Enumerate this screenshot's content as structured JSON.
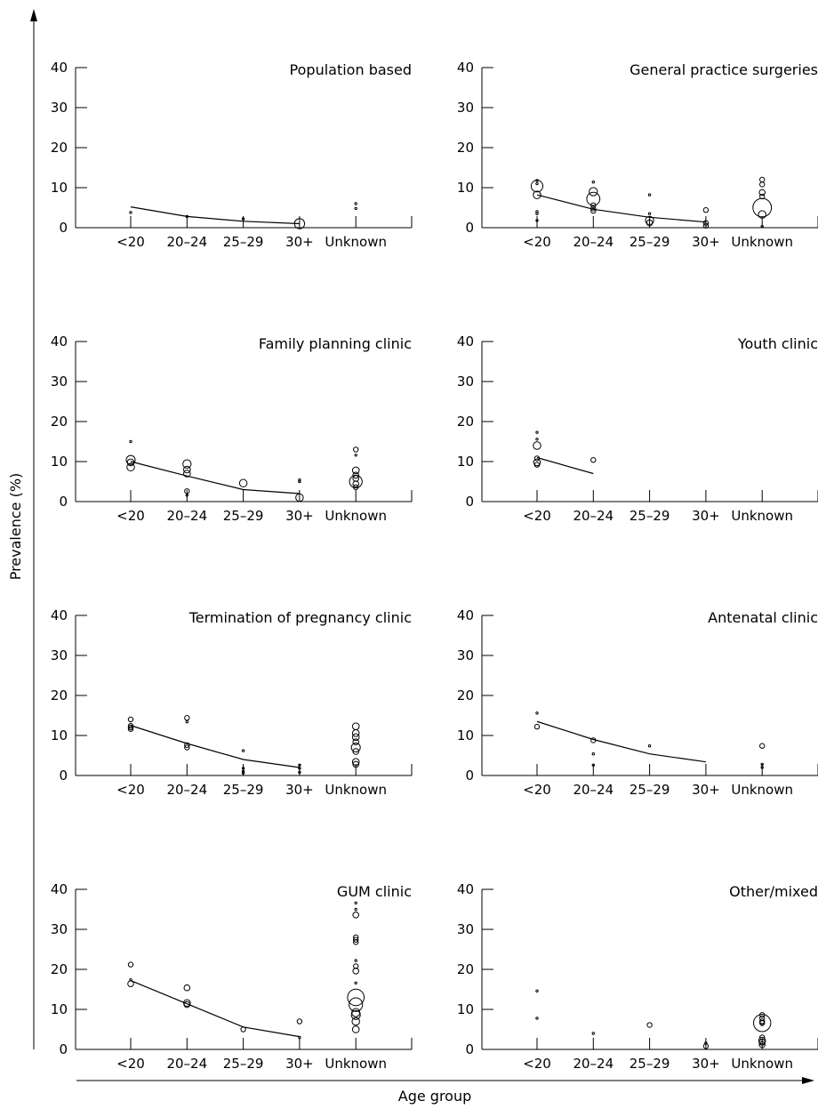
{
  "figure": {
    "ylabel": "Prevalence (%)",
    "xlabel": "Age group"
  },
  "chart_data": [
    {
      "type": "scatter",
      "title": "Population based",
      "categories": [
        "<20",
        "20–24",
        "25–29",
        "30+",
        "Unknown"
      ],
      "ylim": [
        0,
        40
      ],
      "yticks": [
        0,
        10,
        20,
        30,
        40
      ],
      "trend": [
        5.2,
        2.8,
        1.6,
        1.0,
        null
      ],
      "points": [
        {
          "x": "<20",
          "y": 3.8,
          "size": 1
        },
        {
          "x": "20–24",
          "y": 2.8,
          "size": 1
        },
        {
          "x": "25–29",
          "y": 2.2,
          "size": 1
        },
        {
          "x": "30+",
          "y": 1.0,
          "size": 9
        },
        {
          "x": "Unknown",
          "y": 6.0,
          "size": 1
        },
        {
          "x": "Unknown",
          "y": 4.8,
          "size": 1
        }
      ]
    },
    {
      "type": "scatter",
      "title": "General practice surgeries",
      "categories": [
        "<20",
        "20–24",
        "25–29",
        "30+",
        "Unknown"
      ],
      "ylim": [
        0,
        40
      ],
      "yticks": [
        0,
        10,
        20,
        30,
        40
      ],
      "trend": [
        8.2,
        4.6,
        2.6,
        1.4,
        null
      ],
      "points": [
        {
          "x": "<20",
          "y": 10.4,
          "size": 12
        },
        {
          "x": "<20",
          "y": 8.2,
          "size": 5
        },
        {
          "x": "<20",
          "y": 11.8,
          "size": 1
        },
        {
          "x": "<20",
          "y": 11.0,
          "size": 1
        },
        {
          "x": "<20",
          "y": 4.0,
          "size": 1
        },
        {
          "x": "<20",
          "y": 3.5,
          "size": 1
        },
        {
          "x": "<20",
          "y": 1.8,
          "size": 1
        },
        {
          "x": "20–24",
          "y": 7.2,
          "size": 15
        },
        {
          "x": "20–24",
          "y": 9.0,
          "size": 6
        },
        {
          "x": "20–24",
          "y": 11.4,
          "size": 1
        },
        {
          "x": "20–24",
          "y": 5.6,
          "size": 2
        },
        {
          "x": "20–24",
          "y": 4.8,
          "size": 2
        },
        {
          "x": "20–24",
          "y": 4.2,
          "size": 2
        },
        {
          "x": "25–29",
          "y": 1.8,
          "size": 6
        },
        {
          "x": "25–29",
          "y": 1.2,
          "size": 3
        },
        {
          "x": "25–29",
          "y": 8.2,
          "size": 1
        },
        {
          "x": "25–29",
          "y": 3.5,
          "size": 1
        },
        {
          "x": "30+",
          "y": 4.4,
          "size": 2
        },
        {
          "x": "30+",
          "y": 1.2,
          "size": 2
        },
        {
          "x": "30+",
          "y": 0.5,
          "size": 2
        },
        {
          "x": "Unknown",
          "y": 5.0,
          "size": 30
        },
        {
          "x": "Unknown",
          "y": 12.0,
          "size": 2
        },
        {
          "x": "Unknown",
          "y": 10.8,
          "size": 2
        },
        {
          "x": "Unknown",
          "y": 8.8,
          "size": 3
        },
        {
          "x": "Unknown",
          "y": 7.8,
          "size": 2
        },
        {
          "x": "Unknown",
          "y": 3.3,
          "size": 5
        },
        {
          "x": "Unknown",
          "y": 0.3,
          "size": 1
        }
      ]
    },
    {
      "type": "scatter",
      "title": "Family planning clinic",
      "categories": [
        "<20",
        "20–24",
        "25–29",
        "30+",
        "Unknown"
      ],
      "ylim": [
        0,
        40
      ],
      "yticks": [
        0,
        10,
        20,
        30,
        40
      ],
      "trend": [
        10.0,
        6.4,
        3.0,
        2.0,
        null
      ],
      "points": [
        {
          "x": "<20",
          "y": 10.4,
          "size": 7
        },
        {
          "x": "<20",
          "y": 9.8,
          "size": 4
        },
        {
          "x": "<20",
          "y": 8.6,
          "size": 5
        },
        {
          "x": "<20",
          "y": 15.0,
          "size": 1
        },
        {
          "x": "20–24",
          "y": 9.4,
          "size": 6
        },
        {
          "x": "20–24",
          "y": 8.0,
          "size": 4
        },
        {
          "x": "20–24",
          "y": 7.0,
          "size": 4
        },
        {
          "x": "20–24",
          "y": 2.6,
          "size": 2
        },
        {
          "x": "20–24",
          "y": 1.6,
          "size": 1
        },
        {
          "x": "25–29",
          "y": 4.6,
          "size": 5
        },
        {
          "x": "30+",
          "y": 5.4,
          "size": 1
        },
        {
          "x": "30+",
          "y": 5.0,
          "size": 1
        },
        {
          "x": "30+",
          "y": 1.0,
          "size": 5
        },
        {
          "x": "Unknown",
          "y": 13.0,
          "size": 2
        },
        {
          "x": "Unknown",
          "y": 11.6,
          "size": 1
        },
        {
          "x": "Unknown",
          "y": 7.8,
          "size": 4
        },
        {
          "x": "Unknown",
          "y": 6.6,
          "size": 3
        },
        {
          "x": "Unknown",
          "y": 5.8,
          "size": 3
        },
        {
          "x": "Unknown",
          "y": 5.0,
          "size": 14
        },
        {
          "x": "Unknown",
          "y": 4.4,
          "size": 3
        },
        {
          "x": "Unknown",
          "y": 3.6,
          "size": 2
        }
      ]
    },
    {
      "type": "scatter",
      "title": "Youth clinic",
      "categories": [
        "<20",
        "20–24",
        "25–29",
        "30+",
        "Unknown"
      ],
      "ylim": [
        0,
        40
      ],
      "yticks": [
        0,
        10,
        20,
        30,
        40
      ],
      "trend": [
        11.0,
        7.0,
        null,
        null,
        null
      ],
      "points": [
        {
          "x": "<20",
          "y": 17.3,
          "size": 1
        },
        {
          "x": "<20",
          "y": 15.6,
          "size": 1
        },
        {
          "x": "<20",
          "y": 14.0,
          "size": 5
        },
        {
          "x": "<20",
          "y": 10.8,
          "size": 2
        },
        {
          "x": "<20",
          "y": 9.8,
          "size": 4
        },
        {
          "x": "<20",
          "y": 9.2,
          "size": 2
        },
        {
          "x": "20–24",
          "y": 10.4,
          "size": 2
        }
      ]
    },
    {
      "type": "scatter",
      "title": "Termination of pregnancy clinic",
      "categories": [
        "<20",
        "20–24",
        "25–29",
        "30+",
        "Unknown"
      ],
      "ylim": [
        0,
        40
      ],
      "yticks": [
        0,
        10,
        20,
        30,
        40
      ],
      "trend": [
        12.5,
        8.0,
        4.0,
        2.0,
        null
      ],
      "points": [
        {
          "x": "<20",
          "y": 14.0,
          "size": 2
        },
        {
          "x": "<20",
          "y": 12.4,
          "size": 2
        },
        {
          "x": "<20",
          "y": 12.0,
          "size": 2
        },
        {
          "x": "<20",
          "y": 11.6,
          "size": 2
        },
        {
          "x": "20–24",
          "y": 14.4,
          "size": 2
        },
        {
          "x": "20–24",
          "y": 13.4,
          "size": 1
        },
        {
          "x": "20–24",
          "y": 7.6,
          "size": 2
        },
        {
          "x": "20–24",
          "y": 7.0,
          "size": 2
        },
        {
          "x": "25–29",
          "y": 6.2,
          "size": 1
        },
        {
          "x": "25–29",
          "y": 1.8,
          "size": 1
        },
        {
          "x": "25–29",
          "y": 1.0,
          "size": 1
        },
        {
          "x": "25–29",
          "y": 0.6,
          "size": 1
        },
        {
          "x": "30+",
          "y": 2.6,
          "size": 1
        },
        {
          "x": "30+",
          "y": 1.8,
          "size": 1
        },
        {
          "x": "30+",
          "y": 0.8,
          "size": 1
        },
        {
          "x": "Unknown",
          "y": 12.3,
          "size": 4
        },
        {
          "x": "Unknown",
          "y": 10.6,
          "size": 4
        },
        {
          "x": "Unknown",
          "y": 9.6,
          "size": 4
        },
        {
          "x": "Unknown",
          "y": 8.4,
          "size": 3
        },
        {
          "x": "Unknown",
          "y": 7.0,
          "size": 7
        },
        {
          "x": "Unknown",
          "y": 6.0,
          "size": 3
        },
        {
          "x": "Unknown",
          "y": 3.4,
          "size": 4
        },
        {
          "x": "Unknown",
          "y": 2.8,
          "size": 3
        }
      ]
    },
    {
      "type": "scatter",
      "title": "Antenatal clinic",
      "categories": [
        "<20",
        "20–24",
        "25–29",
        "30+",
        "Unknown"
      ],
      "ylim": [
        0,
        40
      ],
      "yticks": [
        0,
        10,
        20,
        30,
        40
      ],
      "trend": [
        13.5,
        9.0,
        5.4,
        3.4,
        null
      ],
      "points": [
        {
          "x": "<20",
          "y": 15.6,
          "size": 1
        },
        {
          "x": "<20",
          "y": 12.2,
          "size": 2
        },
        {
          "x": "20–24",
          "y": 8.8,
          "size": 2
        },
        {
          "x": "20–24",
          "y": 5.4,
          "size": 1
        },
        {
          "x": "20–24",
          "y": 2.6,
          "size": 1
        },
        {
          "x": "25–29",
          "y": 7.4,
          "size": 1
        },
        {
          "x": "Unknown",
          "y": 7.4,
          "size": 2
        },
        {
          "x": "Unknown",
          "y": 2.8,
          "size": 1
        },
        {
          "x": "Unknown",
          "y": 2.0,
          "size": 1
        }
      ]
    },
    {
      "type": "scatter",
      "title": "GUM clinic",
      "categories": [
        "<20",
        "20–24",
        "25–29",
        "30+",
        "Unknown"
      ],
      "ylim": [
        0,
        40
      ],
      "yticks": [
        0,
        10,
        20,
        30,
        40
      ],
      "trend": [
        17.2,
        11.4,
        5.6,
        3.2,
        null
      ],
      "points": [
        {
          "x": "<20",
          "y": 21.2,
          "size": 2
        },
        {
          "x": "<20",
          "y": 16.4,
          "size": 3
        },
        {
          "x": "<20",
          "y": 17.4,
          "size": 1
        },
        {
          "x": "20–24",
          "y": 15.4,
          "size": 3
        },
        {
          "x": "20–24",
          "y": 11.6,
          "size": 4
        },
        {
          "x": "20–24",
          "y": 11.2,
          "size": 3
        },
        {
          "x": "25–29",
          "y": 5.0,
          "size": 2
        },
        {
          "x": "30+",
          "y": 7.0,
          "size": 2
        },
        {
          "x": "30+",
          "y": 3.0,
          "size": 1
        },
        {
          "x": "Unknown",
          "y": 36.6,
          "size": 1
        },
        {
          "x": "Unknown",
          "y": 35.0,
          "size": 1
        },
        {
          "x": "Unknown",
          "y": 33.6,
          "size": 3
        },
        {
          "x": "Unknown",
          "y": 28.0,
          "size": 2
        },
        {
          "x": "Unknown",
          "y": 27.4,
          "size": 2
        },
        {
          "x": "Unknown",
          "y": 26.8,
          "size": 2
        },
        {
          "x": "Unknown",
          "y": 22.2,
          "size": 1
        },
        {
          "x": "Unknown",
          "y": 20.8,
          "size": 2
        },
        {
          "x": "Unknown",
          "y": 19.6,
          "size": 3
        },
        {
          "x": "Unknown",
          "y": 16.6,
          "size": 1
        },
        {
          "x": "Unknown",
          "y": 13.0,
          "size": 24
        },
        {
          "x": "Unknown",
          "y": 11.2,
          "size": 16
        },
        {
          "x": "Unknown",
          "y": 9.2,
          "size": 6
        },
        {
          "x": "Unknown",
          "y": 8.6,
          "size": 7
        },
        {
          "x": "Unknown",
          "y": 7.0,
          "size": 5
        },
        {
          "x": "Unknown",
          "y": 5.0,
          "size": 4
        }
      ]
    },
    {
      "type": "scatter",
      "title": "Other/mixed",
      "categories": [
        "<20",
        "20–24",
        "25–29",
        "30+",
        "Unknown"
      ],
      "ylim": [
        0,
        40
      ],
      "yticks": [
        0,
        10,
        20,
        30,
        40
      ],
      "trend": [],
      "points": [
        {
          "x": "<20",
          "y": 14.6,
          "size": 1
        },
        {
          "x": "<20",
          "y": 7.8,
          "size": 1
        },
        {
          "x": "20–24",
          "y": 4.0,
          "size": 1
        },
        {
          "x": "25–29",
          "y": 6.1,
          "size": 2
        },
        {
          "x": "30+",
          "y": 1.6,
          "size": 1
        },
        {
          "x": "30+",
          "y": 0.8,
          "size": 2
        },
        {
          "x": "Unknown",
          "y": 6.6,
          "size": 26
        },
        {
          "x": "Unknown",
          "y": 8.6,
          "size": 2
        },
        {
          "x": "Unknown",
          "y": 7.8,
          "size": 2
        },
        {
          "x": "Unknown",
          "y": 7.0,
          "size": 2
        },
        {
          "x": "Unknown",
          "y": 6.6,
          "size": 2
        },
        {
          "x": "Unknown",
          "y": 6.2,
          "size": 1
        },
        {
          "x": "Unknown",
          "y": 3.0,
          "size": 2
        },
        {
          "x": "Unknown",
          "y": 2.2,
          "size": 4
        },
        {
          "x": "Unknown",
          "y": 1.8,
          "size": 3
        },
        {
          "x": "Unknown",
          "y": 1.2,
          "size": 3
        }
      ]
    }
  ]
}
